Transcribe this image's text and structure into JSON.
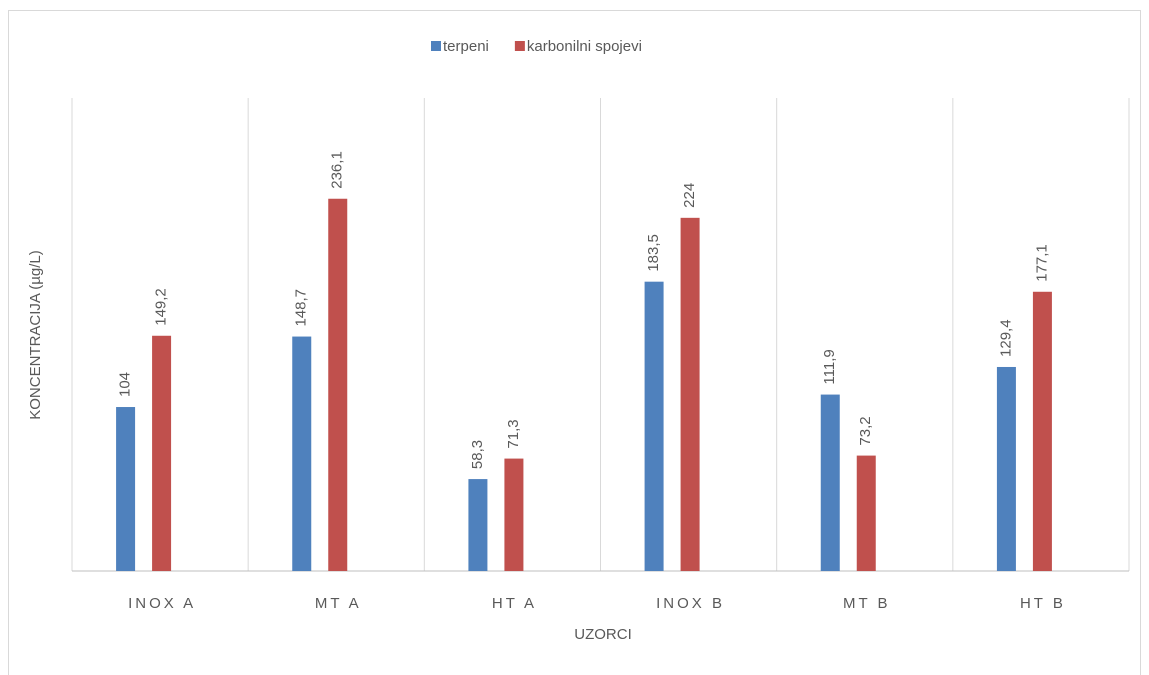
{
  "chart_data": {
    "type": "bar",
    "categories": [
      "INOX A",
      "MT A",
      "HT A",
      "INOX B",
      "MT B",
      "HT B"
    ],
    "series": [
      {
        "name": "terpeni",
        "color": "#4f81bd",
        "values": [
          104,
          148.7,
          58.3,
          183.5,
          111.9,
          129.4
        ],
        "value_labels": [
          "104",
          "148,7",
          "58,3",
          "183,5",
          "111,9",
          "129,4"
        ]
      },
      {
        "name": "karbonilni spojevi",
        "color": "#c0504d",
        "values": [
          149.2,
          236.1,
          71.3,
          224,
          73.2,
          177.1
        ],
        "value_labels": [
          "149,2",
          "236,1",
          "71,3",
          "224",
          "73,2",
          "177,1"
        ]
      }
    ],
    "x_label": "UZORCI",
    "y_label": "KONCENTRACIJA (µg/L)",
    "ylim": [
      0,
      300
    ],
    "legend": "top"
  }
}
